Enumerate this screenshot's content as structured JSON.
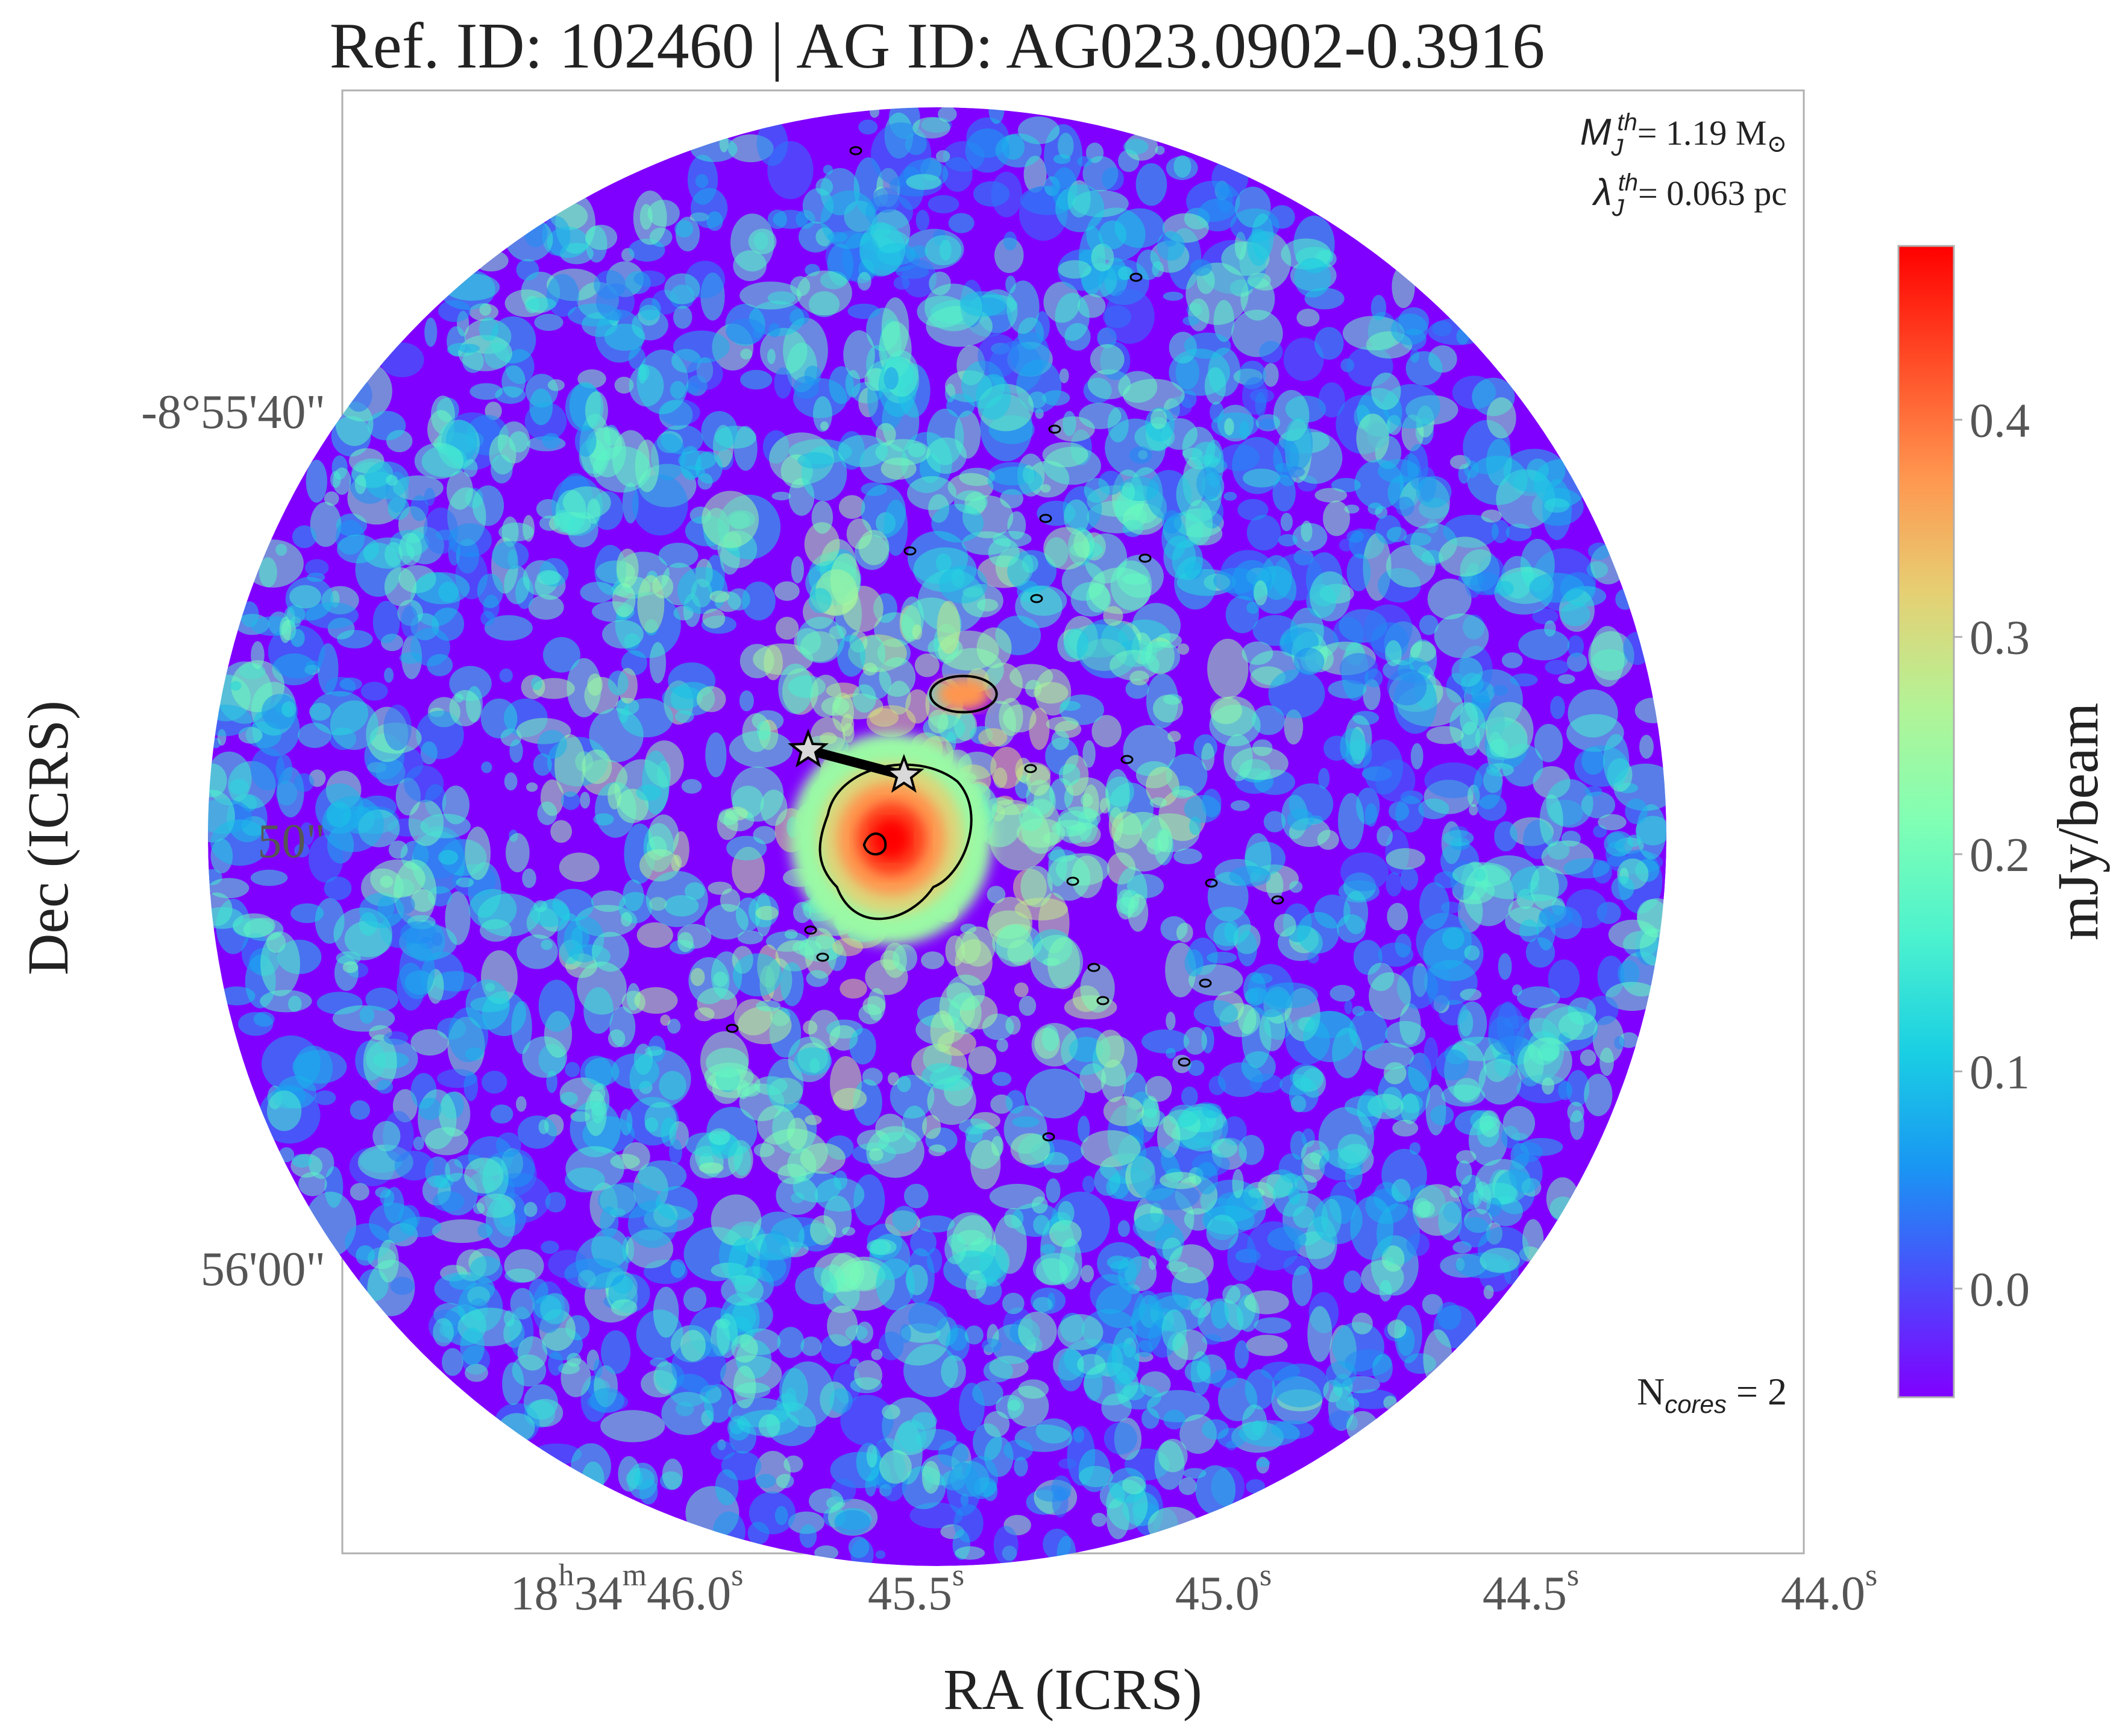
{
  "chart_data": {
    "type": "heatmap",
    "title": "Ref. ID: 102460 | AG ID: AG023.0902-0.3916",
    "xlabel": "RA (ICRS)",
    "ylabel": "Dec (ICRS)",
    "x_ticks": [
      {
        "h": "18",
        "hs": "h",
        "m": "34",
        "ms": "m",
        "s": "46.0",
        "ss": "s",
        "value_s": 46.0
      },
      {
        "s": "45.5",
        "ss": "s",
        "value_s": 45.5
      },
      {
        "s": "45.0",
        "ss": "s",
        "value_s": 45.0
      },
      {
        "s": "44.5",
        "ss": "s",
        "value_s": 44.5
      },
      {
        "s": "44.0",
        "ss": "s",
        "value_s": 44.0
      }
    ],
    "xlim_s": [
      46.28,
      43.99
    ],
    "y_ticks": [
      {
        "label": "-8°55'40\"",
        "value_arcsec": 40
      },
      {
        "label": "50\"",
        "value_arcsec": 50
      },
      {
        "label": "56'00\"",
        "value_arcsec": 60
      }
    ],
    "ylim_arcsec": [
      32.6,
      67.2
    ],
    "colorbar": {
      "label": "mJy/beam",
      "ticks": [
        "0.0",
        "0.1",
        "0.2",
        "0.3",
        "0.4"
      ],
      "tick_values": [
        0.0,
        0.1,
        0.2,
        0.3,
        0.4
      ],
      "min": -0.05,
      "max": 0.48,
      "colormap": "rainbow"
    },
    "annotations": {
      "jeans_mass": {
        "symbol": "M",
        "sub": "J",
        "sup": "th",
        "value": "= 1.19 M",
        "unit_symbol": "⊙"
      },
      "jeans_length": {
        "symbol": "λ",
        "sub": "J",
        "sup": "th",
        "value": "= 0.063 pc"
      },
      "ncores": {
        "prefix": "N",
        "sub": "cores",
        "value": " = 2"
      }
    },
    "cores": [
      {
        "ra_s": 45.55,
        "dec_arcsec": 48.2
      },
      {
        "ra_s": 45.4,
        "dec_arcsec": 48.8
      }
    ],
    "emission_peak": {
      "ra_s": 45.42,
      "dec_arcsec": 50.3,
      "peak_mJy_per_beam": 0.45
    }
  },
  "colors": {
    "frame": "#b0b0b0",
    "text": "#222222",
    "tick_text": "#555555",
    "contour": "#000000",
    "star_fill": "#d9d9d9",
    "colormap_stops": [
      "#8000ff",
      "#4c4bfc",
      "#1996f3",
      "#1acfe3",
      "#4cf2ce",
      "#80ffb4",
      "#b3f396",
      "#e6cf73",
      "#ff964f",
      "#ff4c27",
      "#ff0000"
    ]
  }
}
